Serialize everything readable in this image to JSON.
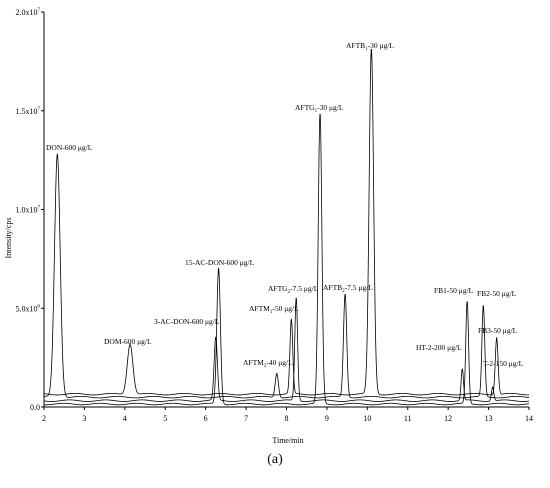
{
  "chart_data": {
    "type": "line",
    "xlabel": "Time/min",
    "ylabel": "Intensity/cps",
    "xlim": [
      2,
      14
    ],
    "ylim": [
      0,
      20000000
    ],
    "x_ticks": [
      "2",
      "3",
      "4",
      "5",
      "6",
      "7",
      "8",
      "9",
      "10",
      "11",
      "12",
      "13",
      "14"
    ],
    "y_ticks": [
      {
        "value": 0,
        "label": "0.0",
        "exp": ""
      },
      {
        "value": 5000000,
        "label": "5.0x10",
        "exp": "6"
      },
      {
        "value": 10000000,
        "label": "1.0x10",
        "exp": "7"
      },
      {
        "value": 15000000,
        "label": "1.5x10",
        "exp": "7"
      },
      {
        "value": 20000000,
        "label": "2.0x10",
        "exp": "7"
      }
    ],
    "grid": false,
    "legend": "none",
    "line_color": "#000000",
    "baselines": [
      500000,
      650000,
      320000,
      150000
    ],
    "peaks": [
      {
        "label": "DON-600 μg/L",
        "rt": 2.33,
        "height": 12800000,
        "width": 0.07
      },
      {
        "label": "DOM-600 μg/L",
        "rt": 4.13,
        "height": 3200000,
        "width": 0.07
      },
      {
        "label": "3-AC-DON-600 μg/L",
        "rt": 6.25,
        "height": 3500000,
        "width": 0.04
      },
      {
        "label": "15-AC-DON-600 μg/L",
        "rt": 6.32,
        "height": 7000000,
        "width": 0.045
      },
      {
        "label": "AFTM2-40 μg/L",
        "rt": 7.76,
        "height": 1700000,
        "width": 0.04
      },
      {
        "label": "AFTM1-50 μg/L",
        "rt": 8.12,
        "height": 4400000,
        "width": 0.035
      },
      {
        "label": "AFTG2-7.5 μg/L",
        "rt": 8.24,
        "height": 5500000,
        "width": 0.035
      },
      {
        "label": "AFTG1-30 μg/L",
        "rt": 8.83,
        "height": 14800000,
        "width": 0.045
      },
      {
        "label": "AFTB2-7.5 μg/L",
        "rt": 9.45,
        "height": 5700000,
        "width": 0.04
      },
      {
        "label": "AFTB1-30 μg/L",
        "rt": 10.1,
        "height": 18100000,
        "width": 0.055
      },
      {
        "label": "HT-2-200 μg/L",
        "rt": 12.35,
        "height": 1900000,
        "width": 0.03
      },
      {
        "label": "FB1-50 μg/L",
        "rt": 12.47,
        "height": 5300000,
        "width": 0.035
      },
      {
        "label": "FB2-50 μg/L",
        "rt": 12.87,
        "height": 5100000,
        "width": 0.035
      },
      {
        "label": "FB3-50 μg/L",
        "rt": 13.2,
        "height": 3500000,
        "width": 0.035
      },
      {
        "label": "T-2-150 μg/L",
        "rt": 13.1,
        "height": 1000000,
        "width": 0.03
      }
    ]
  },
  "peak_labels": {
    "don": "DON-600 μg/L",
    "dom": "DOM-600 μg/L",
    "ac3": "3-AC-DON-600 μg/L",
    "ac15": "15-AC-DON-600 μg/L",
    "aftm2_a": "AFTM",
    "aftm2_sub": "2",
    "aftm2_b": "-40 μg/L",
    "aftm1_a": "AFTM",
    "aftm1_sub": "1",
    "aftm1_b": "-50 μg/L",
    "aftg2_a": "AFTG",
    "aftg2_sub": "2",
    "aftg2_b": "-7.5 μg/L",
    "aftg1_a": "AFTG",
    "aftg1_sub": "1",
    "aftg1_b": "-30 μg/L",
    "aftb2_a": "AFTB",
    "aftb2_sub": "2",
    "aftb2_b": "-7.5 μg/L",
    "aftb1_a": "AFTB",
    "aftb1_sub": "1",
    "aftb1_b": "-30 μg/L",
    "ht2": "HT-2-200 μg/L",
    "fb1": "FB1-50 μg/L",
    "fb2": "FB2-50 μg/L",
    "fb3": "FB3-50 μg/L",
    "t2": "T-2-150 μg/L"
  },
  "panel_label": "(a)"
}
